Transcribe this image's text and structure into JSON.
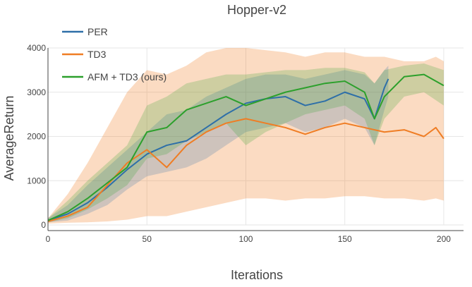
{
  "chart_data": {
    "type": "line",
    "title": "Hopper-v2",
    "xlabel": "Iterations",
    "ylabel": "AverageReturn",
    "xlim": [
      0,
      210
    ],
    "ylim": [
      0,
      4000
    ],
    "x_ticks": [
      0,
      50,
      100,
      150,
      200
    ],
    "y_ticks": [
      0,
      1000,
      2000,
      3000,
      4000
    ],
    "grid": true,
    "legend_position": "top-left",
    "series": [
      {
        "name": "PER",
        "color": "#2e6fa8",
        "x": [
          0,
          10,
          20,
          30,
          40,
          50,
          60,
          70,
          80,
          90,
          100,
          110,
          120,
          130,
          140,
          150,
          160,
          165,
          170,
          172
        ],
        "y": [
          100,
          250,
          500,
          850,
          1250,
          1600,
          1800,
          1900,
          2200,
          2500,
          2750,
          2850,
          2900,
          2700,
          2800,
          3000,
          2850,
          2400,
          3100,
          3300
        ],
        "upper": [
          150,
          450,
          900,
          1300,
          1700,
          2100,
          2500,
          2600,
          2900,
          3100,
          3300,
          3400,
          3400,
          3300,
          3400,
          3500,
          3400,
          3200,
          3500,
          3600
        ],
        "lower": [
          60,
          100,
          250,
          450,
          800,
          1100,
          1200,
          1300,
          1500,
          1800,
          2100,
          2200,
          2300,
          2100,
          2200,
          2400,
          2200,
          1800,
          2600,
          2900
        ]
      },
      {
        "name": "TD3",
        "color": "#ef7d24",
        "x": [
          0,
          10,
          20,
          30,
          40,
          50,
          60,
          70,
          80,
          90,
          100,
          110,
          120,
          130,
          140,
          150,
          160,
          170,
          180,
          190,
          196,
          200
        ],
        "y": [
          80,
          200,
          400,
          900,
          1400,
          1700,
          1300,
          1800,
          2100,
          2300,
          2400,
          2300,
          2200,
          2050,
          2200,
          2300,
          2200,
          2100,
          2150,
          2000,
          2200,
          1950
        ],
        "upper": [
          150,
          700,
          1400,
          2200,
          3000,
          3500,
          3400,
          3600,
          3900,
          4000,
          4000,
          3950,
          3900,
          3800,
          3900,
          3900,
          3800,
          3800,
          3700,
          3700,
          3800,
          3700
        ],
        "lower": [
          30,
          50,
          60,
          80,
          120,
          200,
          200,
          300,
          400,
          500,
          600,
          600,
          550,
          600,
          600,
          650,
          650,
          600,
          600,
          550,
          600,
          550
        ]
      },
      {
        "name": "AFM + TD3 (ours)",
        "color": "#2ca02c",
        "x": [
          0,
          10,
          20,
          30,
          40,
          50,
          60,
          70,
          80,
          90,
          100,
          110,
          120,
          130,
          140,
          150,
          160,
          165,
          170,
          180,
          190,
          200
        ],
        "y": [
          100,
          300,
          600,
          950,
          1300,
          2100,
          2200,
          2600,
          2750,
          2900,
          2700,
          2850,
          3000,
          3100,
          3200,
          3250,
          3000,
          2400,
          2900,
          3350,
          3400,
          3150
        ],
        "upper": [
          150,
          550,
          1000,
          1400,
          1800,
          2700,
          2900,
          3200,
          3300,
          3400,
          3400,
          3450,
          3500,
          3500,
          3550,
          3550,
          3450,
          3200,
          3500,
          3600,
          3650,
          3500
        ],
        "lower": [
          60,
          150,
          350,
          600,
          900,
          1500,
          1600,
          1900,
          2100,
          2300,
          1800,
          2100,
          2300,
          2500,
          2600,
          2700,
          2400,
          1800,
          2400,
          2900,
          3000,
          2700
        ]
      }
    ]
  }
}
